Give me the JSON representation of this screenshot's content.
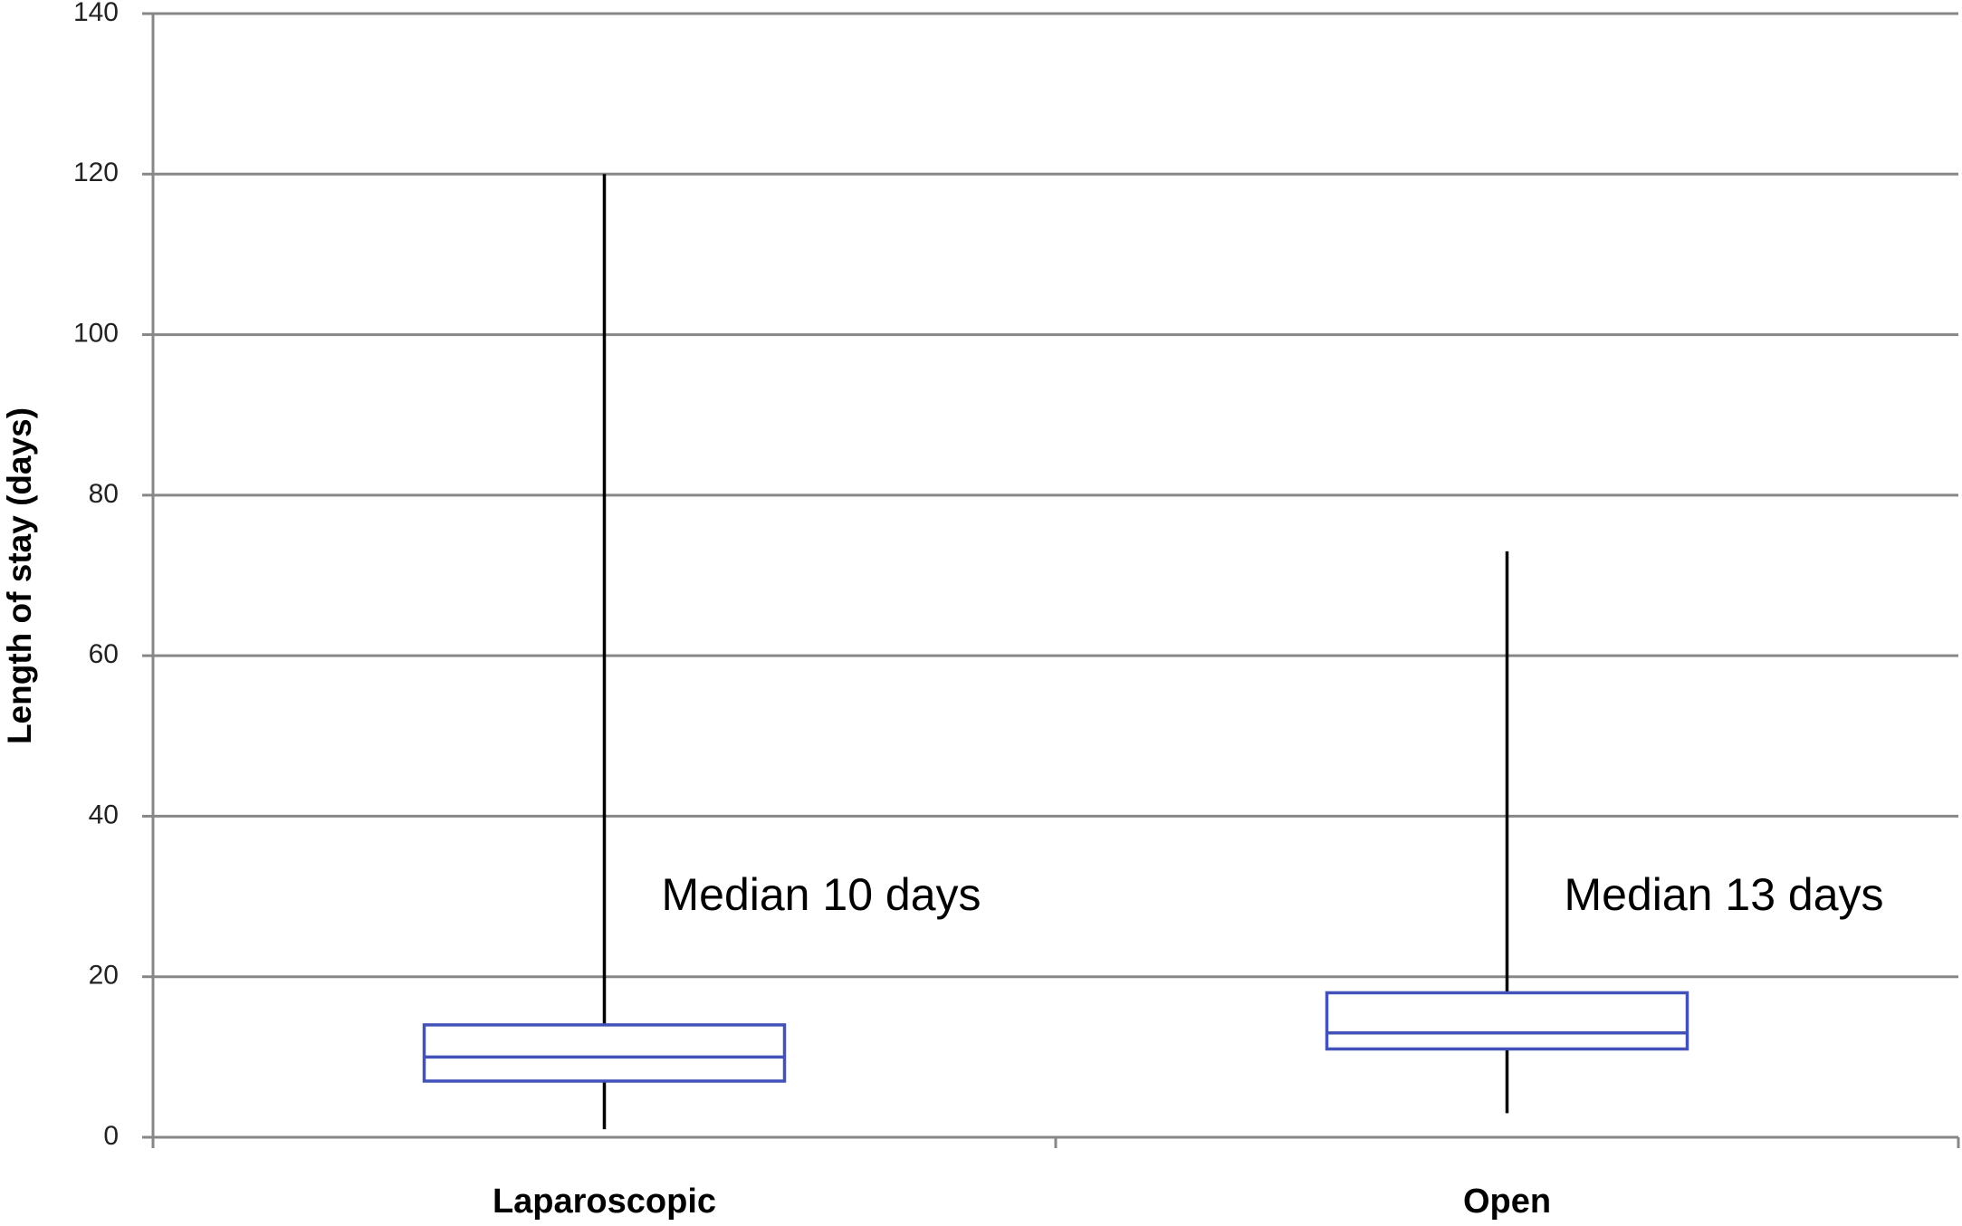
{
  "chart_data": {
    "type": "box",
    "y_label": "Length of stay (days)",
    "categories": [
      "Laparoscopic",
      "Open"
    ],
    "boxes": [
      {
        "min": 1,
        "q1": 7,
        "median": 10,
        "q3": 14,
        "max": 120
      },
      {
        "min": 3,
        "q1": 11,
        "median": 13,
        "q3": 18,
        "max": 73
      }
    ],
    "annotations": [
      "Median 10 days",
      "Median 13 days"
    ],
    "box_color": "#4352b8",
    "whisker_color": "#000000",
    "ylim": [
      0,
      140
    ],
    "yticks": [
      0,
      20,
      40,
      60,
      80,
      100,
      120,
      140
    ],
    "grid": true
  }
}
